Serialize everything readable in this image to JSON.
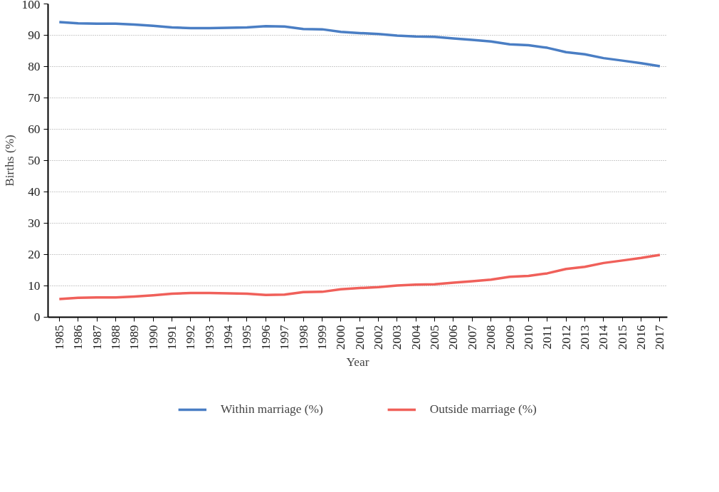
{
  "chart_data": {
    "type": "line",
    "xlabel": "Year",
    "ylabel": "Births (%)",
    "categories": [
      "1985",
      "1986",
      "1987",
      "1988",
      "1989",
      "1990",
      "1991",
      "1992",
      "1993",
      "1994",
      "1995",
      "1996",
      "1997",
      "1998",
      "1999",
      "2000",
      "2001",
      "2002",
      "2003",
      "2004",
      "2005",
      "2006",
      "2007",
      "2008",
      "2009",
      "2010",
      "2011",
      "2012",
      "2013",
      "2014",
      "2015",
      "2016",
      "2017"
    ],
    "series": [
      {
        "name": "Within marriage (%)",
        "color": "#4a7ec4",
        "values": [
          94.2,
          93.8,
          93.7,
          93.7,
          93.4,
          93.0,
          92.5,
          92.3,
          92.3,
          92.4,
          92.5,
          92.9,
          92.8,
          92.0,
          91.9,
          91.1,
          90.7,
          90.4,
          89.9,
          89.6,
          89.5,
          89.0,
          88.5,
          88.0,
          87.1,
          86.8,
          86.0,
          84.6,
          83.9,
          82.7,
          81.9,
          81.1,
          80.1
        ]
      },
      {
        "name": "Outside marriage (%)",
        "color": "#f0605a",
        "values": [
          5.8,
          6.2,
          6.3,
          6.3,
          6.6,
          7.0,
          7.5,
          7.7,
          7.7,
          7.6,
          7.5,
          7.1,
          7.2,
          8.0,
          8.1,
          8.9,
          9.3,
          9.6,
          10.1,
          10.4,
          10.5,
          11.0,
          11.5,
          12.0,
          12.9,
          13.2,
          14.0,
          15.4,
          16.1,
          17.3,
          18.1,
          18.9,
          19.9
        ]
      }
    ],
    "ylim": [
      0,
      100
    ],
    "yticks": [
      0,
      10,
      20,
      30,
      40,
      50,
      60,
      70,
      80,
      90,
      100
    ],
    "grid": "y",
    "legend": "bottom",
    "line_style": "solid",
    "marker": "none"
  }
}
